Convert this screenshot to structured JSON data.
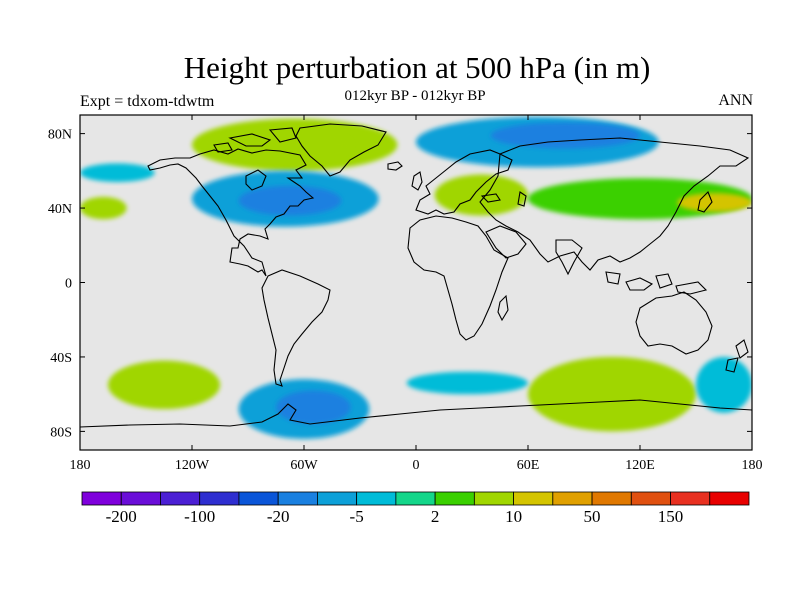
{
  "title": "Height perturbation at 500 hPa (in m)",
  "subtitle": "012kyr BP - 012kyr BP",
  "left_label": "Expt = tdxom-tdwtm",
  "right_label": "ANN",
  "colors": {
    "background_zero": "#e6e6e6",
    "coast": "#000000",
    "levels": [
      "#7f00dc",
      "#6a0ed8",
      "#4b1fd4",
      "#2e2ed0",
      "#0a55d8",
      "#1a80e0",
      "#0ca0d8",
      "#00bcd8",
      "#e8e8e8",
      "#14d68a",
      "#3ad000",
      "#a0d600",
      "#d4c400",
      "#e0a000",
      "#e07800",
      "#e05010",
      "#e83020",
      "#e80000"
    ]
  },
  "chart_data": {
    "type": "heatmap",
    "projection": "cylindrical-equidistant",
    "variable": "Height perturbation at 500 hPa",
    "units": "m",
    "xlim": [
      -180,
      180
    ],
    "ylim": [
      -90,
      90
    ],
    "x_ticks": [
      {
        "value": -180,
        "label": "180"
      },
      {
        "value": -120,
        "label": "120W"
      },
      {
        "value": -60,
        "label": "60W"
      },
      {
        "value": 0,
        "label": "0"
      },
      {
        "value": 60,
        "label": "60E"
      },
      {
        "value": 120,
        "label": "120E"
      },
      {
        "value": 180,
        "label": "180"
      }
    ],
    "y_ticks": [
      {
        "value": 80,
        "label": "80N"
      },
      {
        "value": 40,
        "label": "40N"
      },
      {
        "value": 0,
        "label": "0"
      },
      {
        "value": -40,
        "label": "40S"
      },
      {
        "value": -80,
        "label": "80S"
      }
    ],
    "colorbar": {
      "boundaries": [
        -250,
        -200,
        -150,
        -100,
        -50,
        -20,
        -10,
        -5,
        -2,
        2,
        5,
        10,
        20,
        50,
        100,
        150,
        200,
        250
      ],
      "labels": [
        {
          "value": -200,
          "text": "-200"
        },
        {
          "value": -100,
          "text": "-100"
        },
        {
          "value": -20,
          "text": "-20"
        },
        {
          "value": -5,
          "text": "-5"
        },
        {
          "value": 2,
          "text": "2"
        },
        {
          "value": 10,
          "text": "10"
        },
        {
          "value": 50,
          "text": "50"
        },
        {
          "value": 150,
          "text": "150"
        }
      ]
    },
    "anomaly_regions": [
      {
        "name": "arctic-greenland-positive",
        "lon": [
          -120,
          -10
        ],
        "lat": [
          60,
          88
        ],
        "level": 10
      },
      {
        "name": "greenland-core-positive",
        "lon": [
          -100,
          -35
        ],
        "lat": [
          66,
          82
        ],
        "level": 15
      },
      {
        "name": "north-atlantic-low",
        "lon": [
          -120,
          -20
        ],
        "lat": [
          30,
          60
        ],
        "level": -10
      },
      {
        "name": "north-atlantic-low-core",
        "lon": [
          -95,
          -40
        ],
        "lat": [
          36,
          52
        ],
        "level": -20
      },
      {
        "name": "north-america-west-low",
        "lon": [
          -180,
          -140
        ],
        "lat": [
          54,
          64
        ],
        "level": -5
      },
      {
        "name": "siberia-arctic-low",
        "lon": [
          0,
          130
        ],
        "lat": [
          62,
          89
        ],
        "level": -10
      },
      {
        "name": "siberia-low-core",
        "lon": [
          40,
          120
        ],
        "lat": [
          72,
          86
        ],
        "level": -20
      },
      {
        "name": "europe-positive",
        "lon": [
          10,
          60
        ],
        "lat": [
          36,
          58
        ],
        "level": 10
      },
      {
        "name": "central-asia-positive",
        "lon": [
          60,
          180
        ],
        "lat": [
          34,
          56
        ],
        "level": 5
      },
      {
        "name": "pacific-positive-core",
        "lon": [
          140,
          180
        ],
        "lat": [
          38,
          48
        ],
        "level": 20
      },
      {
        "name": "east-pacific-positive",
        "lon": [
          -180,
          -155
        ],
        "lat": [
          34,
          46
        ],
        "level": 10
      },
      {
        "name": "south-pacific-positive",
        "lon": [
          -165,
          -105
        ],
        "lat": [
          -68,
          -42
        ],
        "level": 10
      },
      {
        "name": "drake-passage-low",
        "lon": [
          -95,
          -25
        ],
        "lat": [
          -84,
          -52
        ],
        "level": -10
      },
      {
        "name": "weddell-low-core",
        "lon": [
          -75,
          -35
        ],
        "lat": [
          -76,
          -58
        ],
        "level": -20
      },
      {
        "name": "southern-ocean-positive",
        "lon": [
          60,
          150
        ],
        "lat": [
          -80,
          -40
        ],
        "level": 10
      },
      {
        "name": "south-indian-low",
        "lon": [
          -5,
          60
        ],
        "lat": [
          -60,
          -48
        ],
        "level": -5
      },
      {
        "name": "tasman-low",
        "lon": [
          150,
          180
        ],
        "lat": [
          -70,
          -40
        ],
        "level": -5
      }
    ]
  }
}
